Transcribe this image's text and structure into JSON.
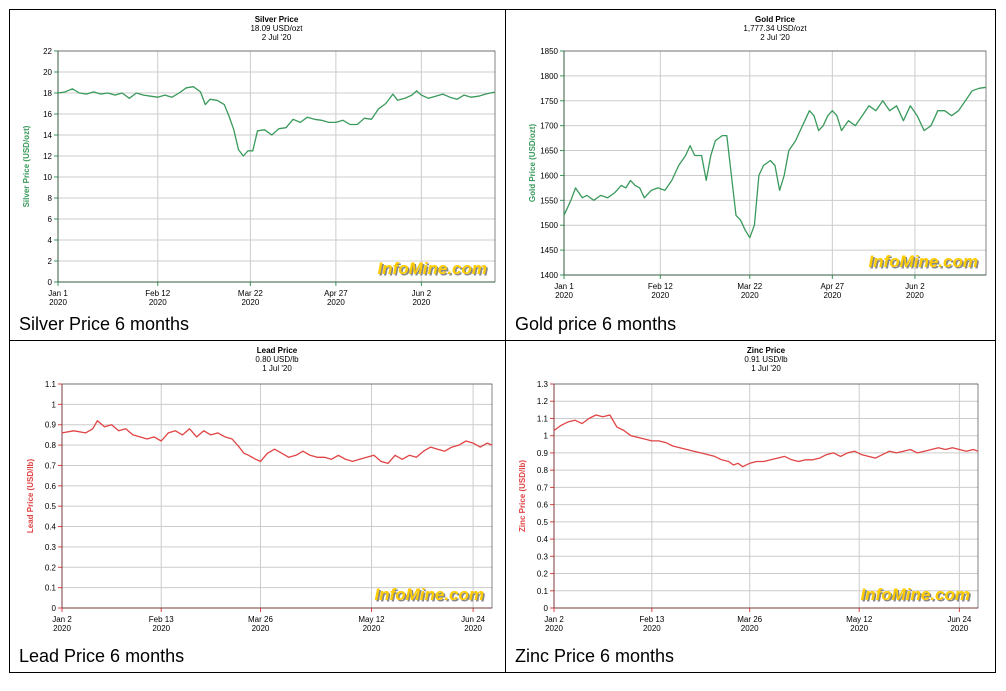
{
  "watermark": "InfoMine.com",
  "colors": {
    "grid": "#cccccc",
    "axis": "#333333",
    "watermark": "#ffcc00",
    "watermark_shadow": "#888888"
  },
  "chart_data": [
    {
      "type": "line",
      "title": "Silver Price",
      "subtitle1": "18.09 USD/ozt",
      "subtitle2": "2 Jul '20",
      "ylabel": "Silver Price (USD/ozt)",
      "caption": "Silver Price 6 months",
      "color": "#3a9a5c",
      "ylim": [
        0,
        22
      ],
      "yticks": [
        0,
        2,
        4,
        6,
        8,
        10,
        12,
        14,
        16,
        18,
        20,
        22
      ],
      "ytick_labels": [
        "0",
        "2",
        "4",
        "6",
        "8",
        "10",
        "12",
        "14",
        "16",
        "18",
        "20",
        "22"
      ],
      "xlim": [
        0,
        184
      ],
      "xticks": [
        {
          "x": 0,
          "label": "Jan 1",
          "year": "2020"
        },
        {
          "x": 42,
          "label": "Feb 12",
          "year": "2020"
        },
        {
          "x": 81,
          "label": "Mar 22",
          "year": "2020"
        },
        {
          "x": 117,
          "label": "Apr 27",
          "year": "2020"
        },
        {
          "x": 153,
          "label": "Jun 2",
          "year": "2020"
        }
      ],
      "points": [
        [
          0,
          18
        ],
        [
          3,
          18.1
        ],
        [
          6,
          18.4
        ],
        [
          9,
          18.0
        ],
        [
          12,
          17.9
        ],
        [
          15,
          18.1
        ],
        [
          18,
          17.9
        ],
        [
          21,
          18.0
        ],
        [
          24,
          17.8
        ],
        [
          27,
          18.0
        ],
        [
          30,
          17.5
        ],
        [
          33,
          18.0
        ],
        [
          36,
          17.8
        ],
        [
          39,
          17.7
        ],
        [
          42,
          17.6
        ],
        [
          45,
          17.8
        ],
        [
          48,
          17.6
        ],
        [
          51,
          18.0
        ],
        [
          54,
          18.5
        ],
        [
          57,
          18.6
        ],
        [
          60,
          18.1
        ],
        [
          62,
          16.9
        ],
        [
          64,
          17.4
        ],
        [
          67,
          17.3
        ],
        [
          70,
          16.9
        ],
        [
          72,
          15.8
        ],
        [
          74,
          14.5
        ],
        [
          76,
          12.6
        ],
        [
          78,
          12.0
        ],
        [
          80,
          12.5
        ],
        [
          82,
          12.5
        ],
        [
          84,
          14.4
        ],
        [
          87,
          14.5
        ],
        [
          90,
          14.0
        ],
        [
          93,
          14.6
        ],
        [
          96,
          14.7
        ],
        [
          99,
          15.5
        ],
        [
          102,
          15.2
        ],
        [
          105,
          15.7
        ],
        [
          108,
          15.5
        ],
        [
          111,
          15.4
        ],
        [
          114,
          15.2
        ],
        [
          117,
          15.2
        ],
        [
          120,
          15.4
        ],
        [
          123,
          15.0
        ],
        [
          126,
          15.0
        ],
        [
          129,
          15.6
        ],
        [
          132,
          15.5
        ],
        [
          135,
          16.5
        ],
        [
          138,
          17.0
        ],
        [
          141,
          17.9
        ],
        [
          143,
          17.3
        ],
        [
          146,
          17.5
        ],
        [
          149,
          17.8
        ],
        [
          151,
          18.2
        ],
        [
          153,
          17.8
        ],
        [
          156,
          17.5
        ],
        [
          159,
          17.7
        ],
        [
          162,
          17.9
        ],
        [
          165,
          17.6
        ],
        [
          168,
          17.4
        ],
        [
          171,
          17.8
        ],
        [
          174,
          17.6
        ],
        [
          177,
          17.7
        ],
        [
          180,
          17.9
        ],
        [
          182,
          18.0
        ],
        [
          184,
          18.09
        ]
      ]
    },
    {
      "type": "line",
      "title": "Gold Price",
      "subtitle1": "1,777.34 USD/ozt",
      "subtitle2": "2 Jul '20",
      "ylabel": "Gold Price (USD/ozt)",
      "caption": "Gold price 6 months",
      "color": "#3a9a5c",
      "ylim": [
        1400,
        1850
      ],
      "yticks": [
        1400,
        1450,
        1500,
        1550,
        1600,
        1650,
        1700,
        1750,
        1800,
        1850
      ],
      "ytick_labels": [
        "1400",
        "1450",
        "1500",
        "1550",
        "1600",
        "1650",
        "1700",
        "1750",
        "1800",
        "1850"
      ],
      "xlim": [
        0,
        184
      ],
      "xticks": [
        {
          "x": 0,
          "label": "Jan 1",
          "year": "2020"
        },
        {
          "x": 42,
          "label": "Feb 12",
          "year": "2020"
        },
        {
          "x": 81,
          "label": "Mar 22",
          "year": "2020"
        },
        {
          "x": 117,
          "label": "Apr 27",
          "year": "2020"
        },
        {
          "x": 153,
          "label": "Jun 2",
          "year": "2020"
        }
      ],
      "points": [
        [
          0,
          1520
        ],
        [
          3,
          1550
        ],
        [
          5,
          1575
        ],
        [
          8,
          1555
        ],
        [
          10,
          1560
        ],
        [
          13,
          1550
        ],
        [
          16,
          1560
        ],
        [
          19,
          1555
        ],
        [
          22,
          1565
        ],
        [
          25,
          1580
        ],
        [
          27,
          1575
        ],
        [
          29,
          1590
        ],
        [
          31,
          1580
        ],
        [
          33,
          1575
        ],
        [
          35,
          1555
        ],
        [
          38,
          1570
        ],
        [
          41,
          1575
        ],
        [
          44,
          1570
        ],
        [
          47,
          1590
        ],
        [
          50,
          1620
        ],
        [
          53,
          1640
        ],
        [
          55,
          1660
        ],
        [
          57,
          1640
        ],
        [
          60,
          1640
        ],
        [
          62,
          1590
        ],
        [
          64,
          1640
        ],
        [
          66,
          1670
        ],
        [
          69,
          1680
        ],
        [
          71,
          1680
        ],
        [
          73,
          1600
        ],
        [
          75,
          1520
        ],
        [
          77,
          1510
        ],
        [
          79,
          1490
        ],
        [
          81,
          1475
        ],
        [
          83,
          1500
        ],
        [
          85,
          1600
        ],
        [
          87,
          1620
        ],
        [
          90,
          1630
        ],
        [
          92,
          1620
        ],
        [
          94,
          1570
        ],
        [
          96,
          1600
        ],
        [
          98,
          1650
        ],
        [
          101,
          1670
        ],
        [
          103,
          1690
        ],
        [
          105,
          1710
        ],
        [
          107,
          1730
        ],
        [
          109,
          1720
        ],
        [
          111,
          1690
        ],
        [
          113,
          1700
        ],
        [
          115,
          1720
        ],
        [
          117,
          1730
        ],
        [
          119,
          1720
        ],
        [
          121,
          1690
        ],
        [
          124,
          1710
        ],
        [
          127,
          1700
        ],
        [
          130,
          1720
        ],
        [
          133,
          1740
        ],
        [
          136,
          1730
        ],
        [
          139,
          1750
        ],
        [
          142,
          1730
        ],
        [
          145,
          1740
        ],
        [
          148,
          1710
        ],
        [
          151,
          1740
        ],
        [
          154,
          1720
        ],
        [
          157,
          1690
        ],
        [
          160,
          1700
        ],
        [
          163,
          1730
        ],
        [
          166,
          1730
        ],
        [
          169,
          1720
        ],
        [
          172,
          1730
        ],
        [
          175,
          1750
        ],
        [
          178,
          1770
        ],
        [
          181,
          1775
        ],
        [
          184,
          1777
        ]
      ]
    },
    {
      "type": "line",
      "title": "Lead Price",
      "subtitle1": "0.80 USD/lb",
      "subtitle2": "1 Jul '20",
      "ylabel": "Lead Price (USD/lb)",
      "caption": "Lead Price 6 months",
      "color": "#e04444",
      "ylim": [
        0,
        1.1
      ],
      "yticks": [
        0,
        0.1,
        0.2,
        0.3,
        0.4,
        0.5,
        0.6,
        0.7,
        0.8,
        0.9,
        1.0,
        1.1
      ],
      "ytick_labels": [
        "0",
        "0.1",
        "0.2",
        "0.3",
        "0.4",
        "0.5",
        "0.6",
        "0.7",
        "0.8",
        "0.9",
        "1",
        "1.1"
      ],
      "xlim": [
        0,
        182
      ],
      "xticks": [
        {
          "x": 0,
          "label": "Jan 2",
          "year": "2020"
        },
        {
          "x": 42,
          "label": "Feb 13",
          "year": "2020"
        },
        {
          "x": 84,
          "label": "Mar 26",
          "year": "2020"
        },
        {
          "x": 131,
          "label": "May 12",
          "year": "2020"
        },
        {
          "x": 174,
          "label": "Jun 24",
          "year": "2020"
        }
      ],
      "points": [
        [
          0,
          0.86
        ],
        [
          5,
          0.87
        ],
        [
          10,
          0.86
        ],
        [
          13,
          0.88
        ],
        [
          15,
          0.92
        ],
        [
          18,
          0.89
        ],
        [
          21,
          0.9
        ],
        [
          24,
          0.87
        ],
        [
          27,
          0.88
        ],
        [
          30,
          0.85
        ],
        [
          33,
          0.84
        ],
        [
          36,
          0.83
        ],
        [
          39,
          0.84
        ],
        [
          42,
          0.82
        ],
        [
          45,
          0.86
        ],
        [
          48,
          0.87
        ],
        [
          51,
          0.85
        ],
        [
          54,
          0.88
        ],
        [
          57,
          0.84
        ],
        [
          60,
          0.87
        ],
        [
          63,
          0.85
        ],
        [
          66,
          0.86
        ],
        [
          69,
          0.84
        ],
        [
          72,
          0.83
        ],
        [
          75,
          0.79
        ],
        [
          77,
          0.76
        ],
        [
          79,
          0.75
        ],
        [
          82,
          0.73
        ],
        [
          84,
          0.72
        ],
        [
          87,
          0.76
        ],
        [
          90,
          0.78
        ],
        [
          93,
          0.76
        ],
        [
          96,
          0.74
        ],
        [
          99,
          0.75
        ],
        [
          102,
          0.77
        ],
        [
          105,
          0.75
        ],
        [
          108,
          0.74
        ],
        [
          111,
          0.74
        ],
        [
          114,
          0.73
        ],
        [
          117,
          0.75
        ],
        [
          120,
          0.73
        ],
        [
          123,
          0.72
        ],
        [
          126,
          0.73
        ],
        [
          129,
          0.74
        ],
        [
          132,
          0.75
        ],
        [
          135,
          0.72
        ],
        [
          138,
          0.71
        ],
        [
          141,
          0.75
        ],
        [
          144,
          0.73
        ],
        [
          147,
          0.75
        ],
        [
          150,
          0.74
        ],
        [
          153,
          0.77
        ],
        [
          156,
          0.79
        ],
        [
          159,
          0.78
        ],
        [
          162,
          0.77
        ],
        [
          165,
          0.79
        ],
        [
          168,
          0.8
        ],
        [
          171,
          0.82
        ],
        [
          174,
          0.81
        ],
        [
          177,
          0.79
        ],
        [
          180,
          0.81
        ],
        [
          182,
          0.8
        ]
      ]
    },
    {
      "type": "line",
      "title": "Zinc Price",
      "subtitle1": "0.91 USD/lb",
      "subtitle2": "1 Jul '20",
      "ylabel": "Zinc Price (USD/lb)",
      "caption": "Zinc Price 6 months",
      "color": "#e04444",
      "ylim": [
        0,
        1.3
      ],
      "yticks": [
        0,
        0.1,
        0.2,
        0.3,
        0.4,
        0.5,
        0.6,
        0.7,
        0.8,
        0.9,
        1.0,
        1.1,
        1.2,
        1.3
      ],
      "ytick_labels": [
        "0",
        "0.1",
        "0.2",
        "0.3",
        "0.4",
        "0.5",
        "0.6",
        "0.7",
        "0.8",
        "0.9",
        "1",
        "1.1",
        "1.2",
        "1.3"
      ],
      "xlim": [
        0,
        182
      ],
      "xticks": [
        {
          "x": 0,
          "label": "Jan 2",
          "year": "2020"
        },
        {
          "x": 42,
          "label": "Feb 13",
          "year": "2020"
        },
        {
          "x": 84,
          "label": "Mar 26",
          "year": "2020"
        },
        {
          "x": 131,
          "label": "May 12",
          "year": "2020"
        },
        {
          "x": 174,
          "label": "Jun 24",
          "year": "2020"
        }
      ],
      "points": [
        [
          0,
          1.03
        ],
        [
          3,
          1.06
        ],
        [
          6,
          1.08
        ],
        [
          9,
          1.09
        ],
        [
          12,
          1.07
        ],
        [
          15,
          1.1
        ],
        [
          18,
          1.12
        ],
        [
          21,
          1.11
        ],
        [
          24,
          1.12
        ],
        [
          27,
          1.05
        ],
        [
          30,
          1.03
        ],
        [
          33,
          1.0
        ],
        [
          36,
          0.99
        ],
        [
          39,
          0.98
        ],
        [
          42,
          0.97
        ],
        [
          45,
          0.97
        ],
        [
          48,
          0.96
        ],
        [
          51,
          0.94
        ],
        [
          54,
          0.93
        ],
        [
          57,
          0.92
        ],
        [
          60,
          0.91
        ],
        [
          63,
          0.9
        ],
        [
          66,
          0.89
        ],
        [
          69,
          0.88
        ],
        [
          72,
          0.86
        ],
        [
          75,
          0.85
        ],
        [
          77,
          0.83
        ],
        [
          79,
          0.84
        ],
        [
          81,
          0.82
        ],
        [
          84,
          0.84
        ],
        [
          87,
          0.85
        ],
        [
          90,
          0.85
        ],
        [
          93,
          0.86
        ],
        [
          96,
          0.87
        ],
        [
          99,
          0.88
        ],
        [
          102,
          0.86
        ],
        [
          105,
          0.85
        ],
        [
          108,
          0.86
        ],
        [
          111,
          0.86
        ],
        [
          114,
          0.87
        ],
        [
          117,
          0.89
        ],
        [
          120,
          0.9
        ],
        [
          123,
          0.88
        ],
        [
          126,
          0.9
        ],
        [
          129,
          0.91
        ],
        [
          132,
          0.89
        ],
        [
          135,
          0.88
        ],
        [
          138,
          0.87
        ],
        [
          141,
          0.89
        ],
        [
          144,
          0.91
        ],
        [
          147,
          0.9
        ],
        [
          150,
          0.91
        ],
        [
          153,
          0.92
        ],
        [
          156,
          0.9
        ],
        [
          159,
          0.91
        ],
        [
          162,
          0.92
        ],
        [
          165,
          0.93
        ],
        [
          168,
          0.92
        ],
        [
          171,
          0.93
        ],
        [
          174,
          0.92
        ],
        [
          177,
          0.91
        ],
        [
          180,
          0.92
        ],
        [
          182,
          0.91
        ]
      ]
    }
  ]
}
